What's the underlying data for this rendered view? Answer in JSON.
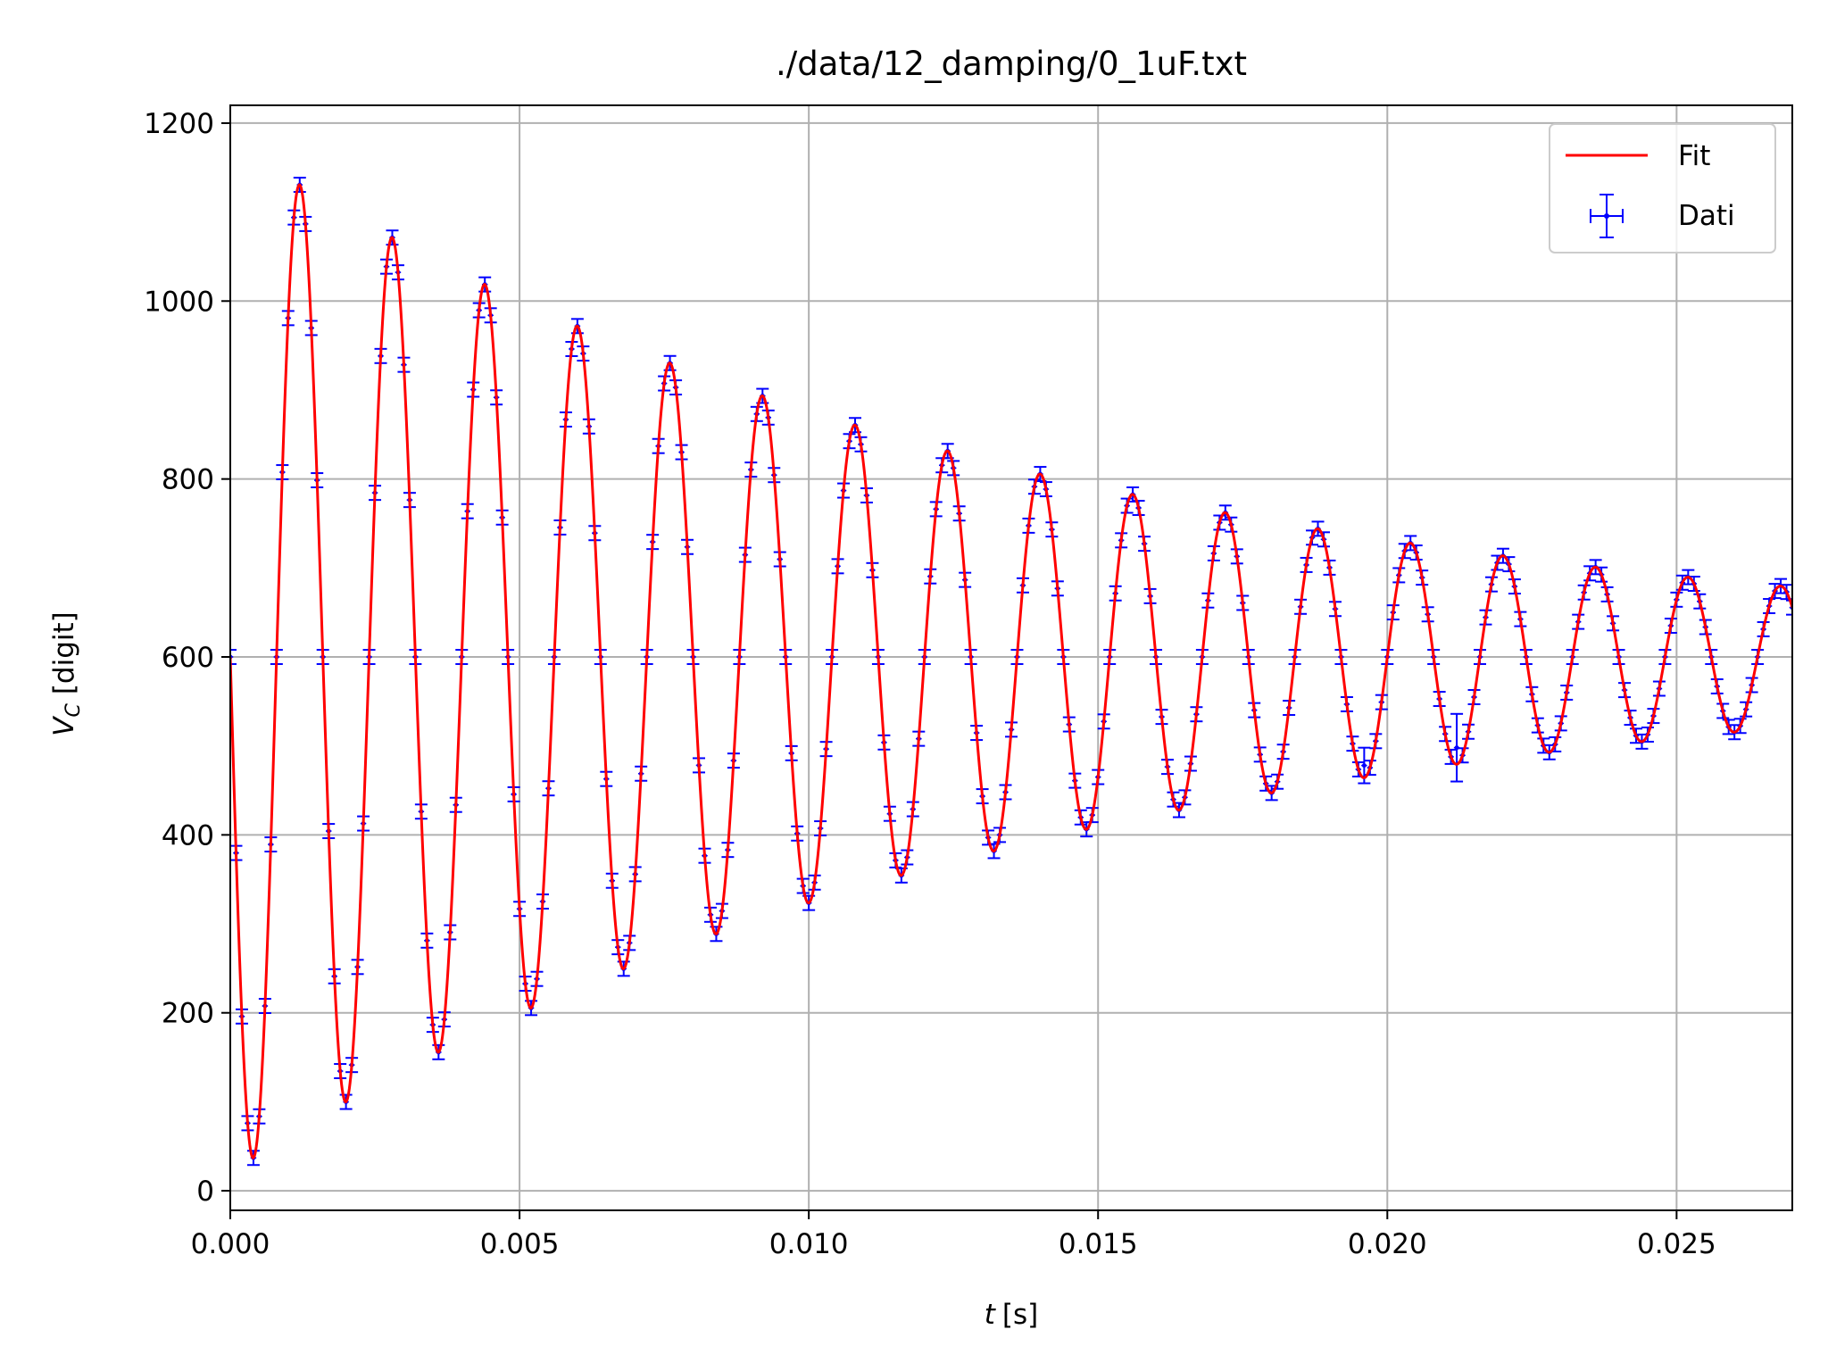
{
  "chart_data": {
    "type": "line",
    "title": "./data/12_damping/0_1uF.txt",
    "xlabel": "t [s]",
    "xlabel_var": "t",
    "xlabel_unit": "[s]",
    "ylabel": "V_C [digit]",
    "ylabel_var": "V",
    "ylabel_sub": "C",
    "ylabel_unit": "[digit]",
    "xlim": [
      0,
      0.027
    ],
    "ylim": [
      -22,
      1220
    ],
    "grid": true,
    "legend_position": "top-right",
    "x_ticks": [
      0.0,
      0.005,
      0.01,
      0.015,
      0.02,
      0.025
    ],
    "x_tick_labels": [
      "0.000",
      "0.005",
      "0.010",
      "0.015",
      "0.020",
      "0.025"
    ],
    "y_ticks": [
      0,
      200,
      400,
      600,
      800,
      1000,
      1200
    ],
    "y_tick_labels": [
      "0",
      "200",
      "400",
      "600",
      "800",
      "1000",
      "1200"
    ],
    "series": [
      {
        "name": "Fit",
        "kind": "line",
        "color": "#ff0000",
        "model": {
          "offset": 600,
          "amplitude": 580,
          "decay_time_s": 0.0135,
          "period_s": 0.0016,
          "phase_rad": 1.5708
        }
      },
      {
        "name": "Dati",
        "kind": "errorbar",
        "color": "#0000ff",
        "sampling_s": 0.0001,
        "y_error": 8,
        "x_error": 5e-05,
        "outliers": [
          {
            "x": 0.0212,
            "y": 498,
            "y_error": 38
          },
          {
            "x": 0.0196,
            "y": 478,
            "y_error": 20
          }
        ]
      }
    ]
  }
}
